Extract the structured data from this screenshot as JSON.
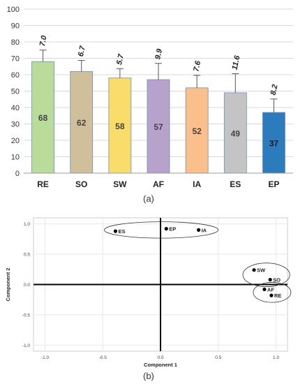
{
  "chart_data": [
    {
      "type": "bar",
      "panel_label": "(a)",
      "categories": [
        "RE",
        "SO",
        "SW",
        "AF",
        "IA",
        "ES",
        "EP"
      ],
      "values": [
        68,
        62,
        58,
        57,
        52,
        49,
        37
      ],
      "error_values": [
        7.0,
        6.7,
        5.7,
        9.9,
        7.6,
        11.6,
        8.2
      ],
      "error_labels": [
        "7.0",
        "6.7",
        "5.7",
        "9.9",
        "7.6",
        "11.6",
        "8.2"
      ],
      "bar_colors": [
        "#b9dc9a",
        "#cfc09b",
        "#f9dd6a",
        "#b7a2cb",
        "#fbbf8c",
        "#c4c4c4",
        "#2b7bbd"
      ],
      "ylim": [
        0,
        100
      ],
      "yticks": [
        0,
        10,
        20,
        30,
        40,
        50,
        60,
        70,
        80,
        90,
        100
      ],
      "grid": true,
      "xlabel": "",
      "ylabel": ""
    },
    {
      "type": "scatter",
      "panel_label": "(b)",
      "xlabel": "Component 1",
      "ylabel": "Component 2",
      "xlim": [
        -1.1,
        1.1
      ],
      "ylim": [
        -1.1,
        1.1
      ],
      "xticks": [
        "-1.0",
        "-0.5",
        "0.0",
        "0.5",
        "1.0"
      ],
      "yticks": [
        "-1.0",
        "-0.5",
        "0.0",
        "0.5",
        "1.0"
      ],
      "grid": true,
      "points": [
        {
          "label": "ES",
          "x": -0.39,
          "y": 0.88
        },
        {
          "label": "EP",
          "x": 0.05,
          "y": 0.92
        },
        {
          "label": "IA",
          "x": 0.33,
          "y": 0.9
        },
        {
          "label": "SW",
          "x": 0.81,
          "y": 0.24
        },
        {
          "label": "SO",
          "x": 0.95,
          "y": 0.08
        },
        {
          "label": "AF",
          "x": 0.9,
          "y": -0.08
        },
        {
          "label": "RE",
          "x": 0.96,
          "y": -0.18
        }
      ],
      "groups": [
        [
          "ES",
          "EP",
          "IA"
        ],
        [
          "SW",
          "SO"
        ],
        [
          "AF",
          "RE"
        ]
      ]
    }
  ]
}
